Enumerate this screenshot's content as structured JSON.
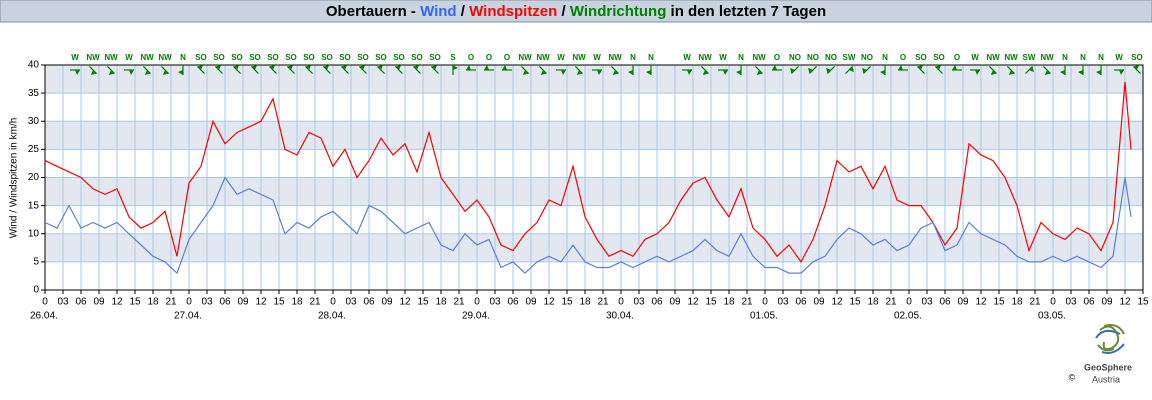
{
  "chart_data": {
    "type": "line",
    "title": [
      {
        "text": "Obertauern - ",
        "color": "#000000"
      },
      {
        "text": "Wind",
        "color": "#3366ff"
      },
      {
        "text": " / ",
        "color": "#000000"
      },
      {
        "text": "Windspitzen",
        "color": "#ff0000"
      },
      {
        "text": " / ",
        "color": "#000000"
      },
      {
        "text": "Windrichtung",
        "color": "#008000"
      },
      {
        "text": " in den letzten 7 Tagen",
        "color": "#000000"
      }
    ],
    "y_label": "Wind / Windspitzen in km/h",
    "ylim": [
      0,
      40
    ],
    "yticks": [
      0,
      5,
      10,
      15,
      20,
      25,
      30,
      35,
      40
    ],
    "xlim": [
      0,
      183
    ],
    "xticks": [
      0,
      {
        "value": 3,
        "label": "03"
      },
      {
        "value": 6,
        "label": "06"
      },
      {
        "value": 9,
        "label": "09"
      },
      12,
      15,
      18,
      21,
      {
        "value": 24,
        "label": "0"
      },
      {
        "value": 27,
        "label": "03"
      },
      {
        "value": 30,
        "label": "06"
      },
      {
        "value": 33,
        "label": "09"
      },
      {
        "value": 36,
        "label": "12"
      },
      {
        "value": 39,
        "label": "15"
      },
      {
        "value": 42,
        "label": "18"
      },
      {
        "value": 45,
        "label": "21"
      },
      {
        "value": 48,
        "label": "0"
      },
      {
        "value": 51,
        "label": "03"
      },
      {
        "value": 54,
        "label": "06"
      },
      {
        "value": 57,
        "label": "09"
      },
      {
        "value": 60,
        "label": "12"
      },
      {
        "value": 63,
        "label": "15"
      },
      {
        "value": 66,
        "label": "18"
      },
      {
        "value": 69,
        "label": "21"
      },
      {
        "value": 72,
        "label": "0"
      },
      {
        "value": 75,
        "label": "03"
      },
      {
        "value": 78,
        "label": "06"
      },
      {
        "value": 81,
        "label": "09"
      },
      {
        "value": 84,
        "label": "12"
      },
      {
        "value": 87,
        "label": "15"
      },
      {
        "value": 90,
        "label": "18"
      },
      {
        "value": 93,
        "label": "21"
      },
      {
        "value": 96,
        "label": "0"
      },
      {
        "value": 99,
        "label": "03"
      },
      {
        "value": 102,
        "label": "06"
      },
      {
        "value": 105,
        "label": "09"
      },
      {
        "value": 108,
        "label": "12"
      },
      {
        "value": 111,
        "label": "15"
      },
      {
        "value": 114,
        "label": "18"
      },
      {
        "value": 117,
        "label": "21"
      },
      {
        "value": 120,
        "label": "0"
      },
      {
        "value": 123,
        "label": "03"
      },
      {
        "value": 126,
        "label": "06"
      },
      {
        "value": 129,
        "label": "09"
      },
      {
        "value": 132,
        "label": "12"
      },
      {
        "value": 135,
        "label": "15"
      },
      {
        "value": 138,
        "label": "18"
      },
      {
        "value": 141,
        "label": "21"
      },
      {
        "value": 144,
        "label": "0"
      },
      {
        "value": 147,
        "label": "03"
      },
      {
        "value": 150,
        "label": "06"
      },
      {
        "value": 153,
        "label": "09"
      },
      {
        "value": 156,
        "label": "12"
      },
      {
        "value": 159,
        "label": "15"
      },
      {
        "value": 162,
        "label": "18"
      },
      {
        "value": 165,
        "label": "21"
      },
      {
        "value": 168,
        "label": "0"
      },
      {
        "value": 171,
        "label": "03"
      },
      {
        "value": 174,
        "label": "06"
      },
      {
        "value": 177,
        "label": "09"
      },
      {
        "value": 180,
        "label": "12"
      },
      {
        "value": 183,
        "label": "15"
      }
    ],
    "date_labels": [
      {
        "value": 0,
        "label": "26.04."
      },
      {
        "value": 24,
        "label": "27.04."
      },
      {
        "value": 48,
        "label": "28.04."
      },
      {
        "value": 72,
        "label": "29.04."
      },
      {
        "value": 96,
        "label": "30.04."
      },
      {
        "value": 120,
        "label": "01.05."
      },
      {
        "value": 144,
        "label": "02.05."
      },
      {
        "value": 168,
        "label": "03.05."
      }
    ],
    "grid": true,
    "band_color": "#e3e8f0",
    "grid_color": "#a8c8e8",
    "x": [
      0,
      2,
      4,
      6,
      8,
      10,
      12,
      14,
      16,
      18,
      20,
      22,
      24,
      26,
      28,
      30,
      32,
      34,
      36,
      38,
      40,
      42,
      44,
      46,
      48,
      50,
      52,
      54,
      56,
      58,
      60,
      62,
      64,
      66,
      68,
      70,
      72,
      74,
      76,
      78,
      80,
      82,
      84,
      86,
      88,
      90,
      92,
      94,
      96,
      98,
      100,
      102,
      104,
      106,
      108,
      110,
      112,
      114,
      116,
      118,
      120,
      122,
      124,
      126,
      128,
      130,
      132,
      134,
      136,
      138,
      140,
      142,
      144,
      146,
      148,
      150,
      152,
      154,
      156,
      158,
      160,
      162,
      164,
      166,
      168,
      170,
      172,
      174,
      176,
      178,
      180,
      181
    ],
    "series": [
      {
        "name": "Windspitzen",
        "color": "#ff0000",
        "values": [
          23,
          22,
          21,
          20,
          18,
          17,
          18,
          13,
          11,
          12,
          14,
          6,
          19,
          22,
          30,
          26,
          28,
          29,
          30,
          34,
          25,
          24,
          28,
          27,
          22,
          25,
          20,
          23,
          27,
          24,
          26,
          21,
          28,
          20,
          17,
          14,
          16,
          13,
          8,
          7,
          10,
          12,
          16,
          15,
          22,
          13,
          9,
          6,
          7,
          6,
          9,
          10,
          12,
          16,
          19,
          20,
          16,
          13,
          18,
          11,
          9,
          6,
          8,
          5,
          9,
          15,
          23,
          21,
          22,
          18,
          22,
          16,
          15,
          15,
          12,
          8,
          11,
          26,
          24,
          23,
          20,
          15,
          7,
          12,
          10,
          9,
          11,
          10,
          7,
          12,
          37,
          25
        ]
      },
      {
        "name": "Wind",
        "color": "#5b80dc",
        "values": [
          12,
          11,
          15,
          11,
          12,
          11,
          12,
          10,
          8,
          6,
          5,
          3,
          9,
          12,
          15,
          20,
          17,
          18,
          17,
          16,
          10,
          12,
          11,
          13,
          14,
          12,
          10,
          15,
          14,
          12,
          10,
          11,
          12,
          8,
          7,
          10,
          8,
          9,
          4,
          5,
          3,
          5,
          6,
          5,
          8,
          5,
          4,
          4,
          5,
          4,
          5,
          6,
          5,
          6,
          7,
          9,
          7,
          6,
          10,
          6,
          4,
          4,
          3,
          3,
          5,
          6,
          9,
          11,
          10,
          8,
          9,
          7,
          8,
          11,
          12,
          7,
          8,
          12,
          10,
          9,
          8,
          6,
          5,
          5,
          6,
          5,
          6,
          5,
          4,
          6,
          20,
          13
        ]
      }
    ],
    "direction": {
      "color": "#008000",
      "x": [
        5,
        8,
        11,
        14,
        17,
        20,
        23,
        26,
        29,
        32,
        35,
        38,
        41,
        44,
        47,
        50,
        53,
        56,
        59,
        62,
        65,
        68,
        71,
        74,
        77,
        80,
        83,
        86,
        89,
        92,
        95,
        98,
        101,
        104,
        107,
        110,
        113,
        116,
        119,
        122,
        125,
        128,
        131,
        134,
        137,
        140,
        143,
        146,
        149,
        152,
        155,
        158,
        161,
        164,
        167,
        170,
        173,
        176,
        179,
        182
      ],
      "labels": [
        "W",
        "NW",
        "NW",
        "W",
        "NW",
        "NW",
        "N",
        "SO",
        "SO",
        "SO",
        "SO",
        "SO",
        "SO",
        "SO",
        "SO",
        "SO",
        "SO",
        "SO",
        "SO",
        "SO",
        "SO",
        "S",
        "O",
        "O",
        "O",
        "NW",
        "NW",
        "W",
        "NW",
        "W",
        "NW",
        "N",
        "N",
        null,
        "W",
        "NW",
        "W",
        "N",
        "NW",
        "O",
        "NO",
        "NO",
        "NO",
        "SW",
        "NO",
        "N",
        "O",
        "SO",
        "SO",
        "O",
        "W",
        "NW",
        "NW",
        "SW",
        "NW",
        "N",
        "N",
        "N",
        "W",
        "SO"
      ]
    },
    "logo": {
      "name": "GeoSphere",
      "sub": "Austria",
      "copyright": "©"
    }
  }
}
